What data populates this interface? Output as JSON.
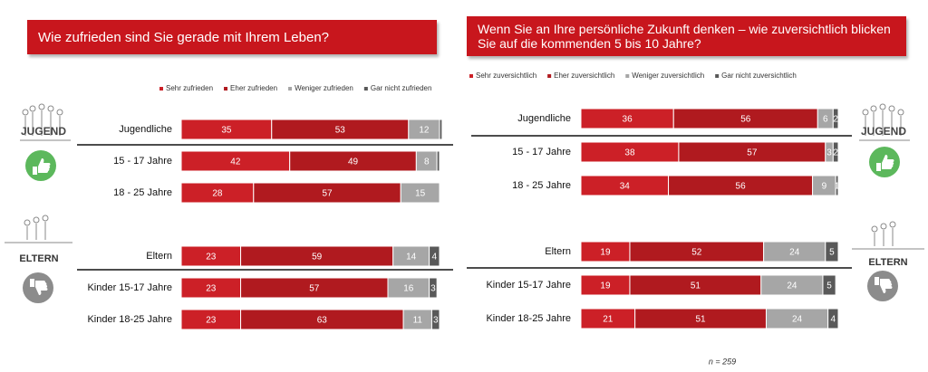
{
  "chart_data": [
    {
      "type": "bar",
      "orientation": "horizontal",
      "stacked": true,
      "title": "Wie zufrieden sind Sie gerade mit Ihrem Leben?",
      "categories": [
        "Jugendliche",
        "15 - 17 Jahre",
        "18 - 25 Jahre",
        "Eltern",
        "Kinder 15-17 Jahre",
        "Kinder 18-25 Jahre"
      ],
      "xlim": [
        0,
        100
      ],
      "series": [
        {
          "name": "Sehr zufrieden",
          "color": "#cc2027",
          "values": [
            35,
            42,
            28,
            23,
            23,
            23
          ]
        },
        {
          "name": "Eher zufrieden",
          "color": "#b01a1f",
          "values": [
            53,
            49,
            57,
            59,
            57,
            63
          ]
        },
        {
          "name": "Weniger zufrieden",
          "color": "#a6a6a6",
          "values": [
            12,
            8,
            15,
            14,
            16,
            11
          ]
        },
        {
          "name": "Gar nicht zufrieden",
          "color": "#595959",
          "values": [
            1,
            1,
            0,
            4,
            3,
            3
          ],
          "value_labels": [
            null,
            null,
            null,
            "4",
            "3",
            "3"
          ]
        }
      ]
    },
    {
      "type": "bar",
      "orientation": "horizontal",
      "stacked": true,
      "title": "Wenn Sie an Ihre persönliche Zukunft denken – wie zuversichtlich blicken Sie auf die kommenden 5 bis 10 Jahre?",
      "categories": [
        "Jugendliche",
        "15 - 17 Jahre",
        "18 - 25 Jahre",
        "Eltern",
        "Kinder 15-17 Jahre",
        "Kinder 18-25 Jahre"
      ],
      "xlim": [
        0,
        100
      ],
      "series": [
        {
          "name": "Sehr zuversichtlich",
          "color": "#cc2027",
          "values": [
            36,
            38,
            34,
            19,
            19,
            21
          ]
        },
        {
          "name": "Eher zuversichtlich",
          "color": "#b01a1f",
          "values": [
            56,
            57,
            56,
            52,
            51,
            51
          ]
        },
        {
          "name": "Weniger zuversichtlich",
          "color": "#a6a6a6",
          "values": [
            6,
            3,
            9,
            24,
            24,
            24
          ]
        },
        {
          "name": "Gar nicht zuversichtlich",
          "color": "#595959",
          "values": [
            2,
            2,
            1,
            5,
            5,
            4
          ]
        }
      ]
    }
  ],
  "icon_labels": {
    "youth": "JUGEND",
    "parents": "ELTERN"
  },
  "note": "n = 259"
}
